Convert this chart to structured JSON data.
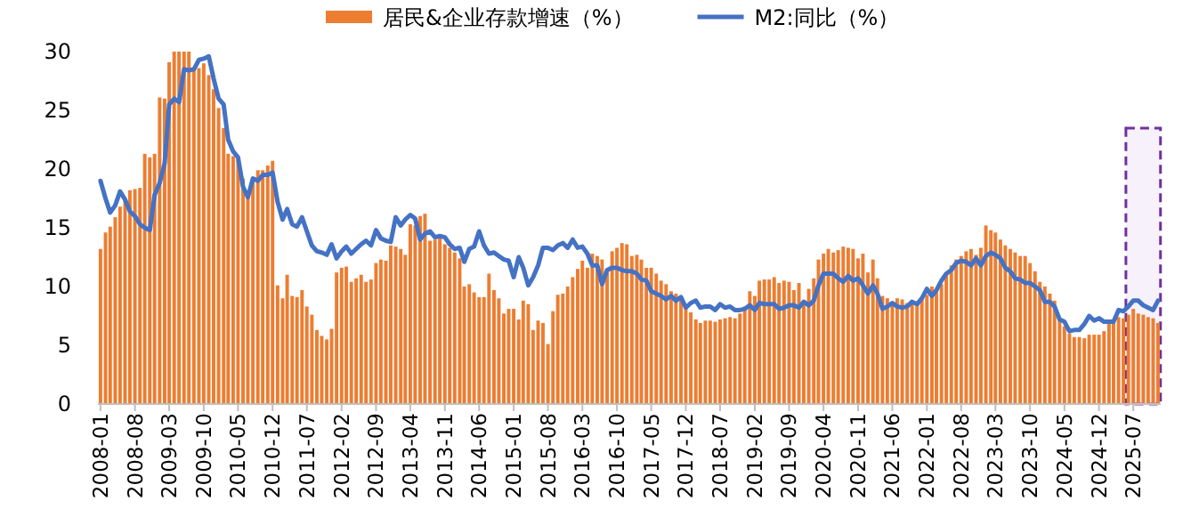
{
  "chart_data": {
    "type": "bar",
    "legend": "top",
    "ylim": [
      0,
      30
    ],
    "yticks": [
      0,
      5,
      10,
      15,
      20,
      25,
      30
    ],
    "xlim": [
      "2007-12-16",
      "2025-12-18"
    ],
    "xticks": [
      "2008-01",
      "2008-08",
      "2009-03",
      "2009-10",
      "2010-05",
      "2010-12",
      "2011-07",
      "2012-02",
      "2012-09",
      "2013-04",
      "2013-11",
      "2014-06",
      "2015-01",
      "2015-08",
      "2016-03",
      "2016-10",
      "2017-05",
      "2017-12",
      "2018-07",
      "2019-02",
      "2019-09",
      "2020-04",
      "2020-11",
      "2021-06",
      "2022-01",
      "2022-08",
      "2023-03",
      "2023-10",
      "2024-05",
      "2024-12",
      "2025-07"
    ],
    "x": [
      "2008-01",
      "2008-02",
      "2008-03",
      "2008-04",
      "2008-05",
      "2008-06",
      "2008-07",
      "2008-08",
      "2008-09",
      "2008-10",
      "2008-11",
      "2008-12",
      "2009-01",
      "2009-02",
      "2009-03",
      "2009-04",
      "2009-05",
      "2009-06",
      "2009-07",
      "2009-08",
      "2009-09",
      "2009-10",
      "2009-11",
      "2009-12",
      "2010-01",
      "2010-02",
      "2010-03",
      "2010-04",
      "2010-05",
      "2010-06",
      "2010-07",
      "2010-08",
      "2010-09",
      "2010-10",
      "2010-11",
      "2010-12",
      "2011-01",
      "2011-02",
      "2011-03",
      "2011-04",
      "2011-05",
      "2011-06",
      "2011-07",
      "2011-08",
      "2011-09",
      "2011-10",
      "2011-11",
      "2011-12",
      "2012-01",
      "2012-02",
      "2012-03",
      "2012-04",
      "2012-05",
      "2012-06",
      "2012-07",
      "2012-08",
      "2012-09",
      "2012-10",
      "2012-11",
      "2012-12",
      "2013-01",
      "2013-02",
      "2013-03",
      "2013-04",
      "2013-05",
      "2013-06",
      "2013-07",
      "2013-08",
      "2013-09",
      "2013-10",
      "2013-11",
      "2013-12",
      "2014-01",
      "2014-02",
      "2014-03",
      "2014-04",
      "2014-05",
      "2014-06",
      "2014-07",
      "2014-08",
      "2014-09",
      "2014-10",
      "2014-11",
      "2014-12",
      "2015-01",
      "2015-02",
      "2015-03",
      "2015-04",
      "2015-05",
      "2015-06",
      "2015-07",
      "2015-08",
      "2015-09",
      "2015-10",
      "2015-11",
      "2015-12",
      "2016-01",
      "2016-02",
      "2016-03",
      "2016-04",
      "2016-05",
      "2016-06",
      "2016-07",
      "2016-08",
      "2016-09",
      "2016-10",
      "2016-11",
      "2016-12",
      "2017-01",
      "2017-02",
      "2017-03",
      "2017-04",
      "2017-05",
      "2017-06",
      "2017-07",
      "2017-08",
      "2017-09",
      "2017-10",
      "2017-11",
      "2017-12",
      "2018-01",
      "2018-02",
      "2018-03",
      "2018-04",
      "2018-05",
      "2018-06",
      "2018-07",
      "2018-08",
      "2018-09",
      "2018-10",
      "2018-11",
      "2018-12",
      "2019-01",
      "2019-02",
      "2019-03",
      "2019-04",
      "2019-05",
      "2019-06",
      "2019-07",
      "2019-08",
      "2019-09",
      "2019-10",
      "2019-11",
      "2019-12",
      "2020-01",
      "2020-02",
      "2020-03",
      "2020-04",
      "2020-05",
      "2020-06",
      "2020-07",
      "2020-08",
      "2020-09",
      "2020-10",
      "2020-11",
      "2020-12",
      "2021-01",
      "2021-02",
      "2021-03",
      "2021-04",
      "2021-05",
      "2021-06",
      "2021-07",
      "2021-08",
      "2021-09",
      "2021-10",
      "2021-11",
      "2021-12",
      "2022-01",
      "2022-02",
      "2022-03",
      "2022-04",
      "2022-05",
      "2022-06",
      "2022-07",
      "2022-08",
      "2022-09",
      "2022-10",
      "2022-11",
      "2022-12",
      "2023-01",
      "2023-02",
      "2023-03",
      "2023-04",
      "2023-05",
      "2023-06",
      "2023-07",
      "2023-08",
      "2023-09",
      "2023-10",
      "2023-11",
      "2023-12",
      "2024-01",
      "2024-02",
      "2024-03",
      "2024-04",
      "2024-05",
      "2024-06",
      "2024-07",
      "2024-08",
      "2024-09",
      "2024-10",
      "2024-11",
      "2024-12",
      "2025-01",
      "2025-02",
      "2025-03",
      "2025-04",
      "2025-05",
      "2025-06",
      "2025-07",
      "2025-08",
      "2025-09",
      "2025-10",
      "2025-11",
      "2025-12"
    ],
    "series": [
      {
        "name": "居民&企业存款增速（%）",
        "color": "#ed7d31",
        "values": [
          13.2,
          14.6,
          15.1,
          15.9,
          16.8,
          17.5,
          18.2,
          18.3,
          18.4,
          21.3,
          21,
          21.3,
          26.1,
          26,
          29.1,
          30,
          30,
          30,
          30,
          28.4,
          28.6,
          29,
          28,
          26.8,
          25.2,
          23.5,
          21.3,
          21.1,
          21,
          19.2,
          18,
          19.3,
          19.9,
          19.9,
          20.3,
          20.7,
          10.1,
          9,
          11,
          9.2,
          9.1,
          9.7,
          8.3,
          7.6,
          6.3,
          5.8,
          5.5,
          6.4,
          11.2,
          11.6,
          11.7,
          10.4,
          10.7,
          11,
          10.4,
          10.6,
          12,
          12.3,
          12.2,
          13.5,
          13.4,
          13.2,
          12.7,
          15.3,
          15.2,
          16,
          16.2,
          13.9,
          14,
          14.2,
          13.6,
          13.3,
          12.9,
          12.4,
          10,
          10.2,
          9.5,
          9.1,
          9.1,
          11.1,
          9.7,
          9,
          7.7,
          8.1,
          8.1,
          7.2,
          8.8,
          8.5,
          6.3,
          7.1,
          6.9,
          5.1,
          7.9,
          9.3,
          9.4,
          10,
          10.8,
          11.5,
          12.2,
          11.6,
          12.8,
          12.6,
          12.3,
          11.3,
          13,
          13.3,
          13.7,
          13.6,
          12.6,
          12.7,
          12.3,
          11.6,
          11.6,
          11.1,
          10.5,
          10.2,
          9.6,
          9.4,
          9.1,
          8.2,
          7.8,
          7.2,
          6.9,
          7.1,
          7.1,
          7,
          7.2,
          7.3,
          7.4,
          7.3,
          7.7,
          8.3,
          9.6,
          9.2,
          10.5,
          10.6,
          10.6,
          10.8,
          10.3,
          10.5,
          10.4,
          9.7,
          10.3,
          8.8,
          9.8,
          10.7,
          12.3,
          12.8,
          13.2,
          12.9,
          13.1,
          13.4,
          13.3,
          13.2,
          12.4,
          12.8,
          11.2,
          12.3,
          10.7,
          9.2,
          9,
          8.7,
          9,
          8.9,
          8.6,
          8.8,
          8.6,
          9,
          9.3,
          10,
          9.6,
          10.2,
          11.2,
          11.8,
          12.3,
          12.6,
          13,
          13.2,
          12.7,
          13.3,
          15.2,
          14.8,
          14.6,
          14,
          13.5,
          13.2,
          12.9,
          12.6,
          12.6,
          12,
          11.3,
          10.4,
          10,
          9.4,
          8.8,
          7.2,
          6.6,
          6,
          5.7,
          5.7,
          5.6,
          5.9,
          5.9,
          5.9,
          6.2,
          7,
          7.1,
          7.4,
          7.3,
          7.6,
          8.1,
          7.7,
          7.6,
          7.4,
          7.3,
          6.9
        ]
      },
      {
        "name": "M2:同比（%）",
        "type": "line",
        "color": "#4472c4",
        "marker": "none",
        "line_style": "solid",
        "values": [
          19,
          17.5,
          16.3,
          16.9,
          18.1,
          17.4,
          16.4,
          16,
          15.3,
          15,
          14.8,
          17.8,
          18.8,
          20.5,
          25.5,
          26,
          25.7,
          28.5,
          28.4,
          28.5,
          29.3,
          29.4,
          29.6,
          27.7,
          26,
          25.5,
          22.5,
          21.5,
          21,
          18.5,
          17.6,
          19.2,
          19,
          19.5,
          19.5,
          19.7,
          17.2,
          15.7,
          16.6,
          15.3,
          15.1,
          15.9,
          14.7,
          13.5,
          13,
          12.9,
          12.7,
          13.6,
          12.4,
          13,
          13.4,
          12.8,
          13.2,
          13.6,
          13.9,
          13.5,
          14.8,
          14.1,
          13.9,
          13.8,
          15.9,
          15.2,
          15.7,
          16.1,
          15.8,
          14,
          14.5,
          14.7,
          14.2,
          14.3,
          14.2,
          13.6,
          13.2,
          13.3,
          12.1,
          13.2,
          13.4,
          14.7,
          13.5,
          12.8,
          12.9,
          12.6,
          12.3,
          12.2,
          10.8,
          12.5,
          11.6,
          10.1,
          10.8,
          11.8,
          13.3,
          13.3,
          13.1,
          13.5,
          13.7,
          13.3,
          14,
          13.3,
          13.4,
          12.8,
          11.8,
          11.8,
          10.2,
          11.4,
          11.6,
          11.6,
          11.4,
          11.3,
          11.3,
          11.1,
          10.6,
          10.5,
          9.6,
          9.4,
          9.2,
          8.9,
          9.2,
          8.8,
          9.1,
          8.2,
          8.6,
          8.8,
          8.2,
          8.3,
          8.3,
          8,
          8.5,
          8.2,
          8.3,
          8,
          8,
          8.1,
          8.4,
          8,
          8.6,
          8.5,
          8.5,
          8.5,
          8.1,
          8.2,
          8.4,
          8.4,
          8.2,
          8.7,
          8.4,
          8.8,
          10.1,
          11.1,
          11.1,
          11.1,
          10.7,
          10.4,
          10.9,
          10.5,
          10.7,
          10.1,
          9.4,
          10.1,
          9.4,
          8.1,
          8.3,
          8.6,
          8.3,
          8.2,
          8.3,
          8.7,
          8.5,
          9,
          9.8,
          9.2,
          9.7,
          10.5,
          11.1,
          11.4,
          12,
          12.2,
          12.1,
          11.8,
          12.4,
          11.8,
          12.6,
          12.9,
          12.7,
          12.4,
          11.6,
          11.3,
          10.7,
          10.6,
          10.3,
          10.3,
          10,
          9.7,
          8.7,
          8.7,
          8.3,
          7.2,
          7,
          6.2,
          6.3,
          6.3,
          6.8,
          7.5,
          7.1,
          7.3,
          7,
          7,
          7,
          8,
          7.9,
          8.3,
          8.8,
          8.8,
          8.4,
          8.2,
          8,
          8.8
        ]
      }
    ],
    "bands": [
      {
        "axis": "x",
        "from": "2025-06",
        "to": "2025-12",
        "color": "#7030a0"
      }
    ]
  }
}
